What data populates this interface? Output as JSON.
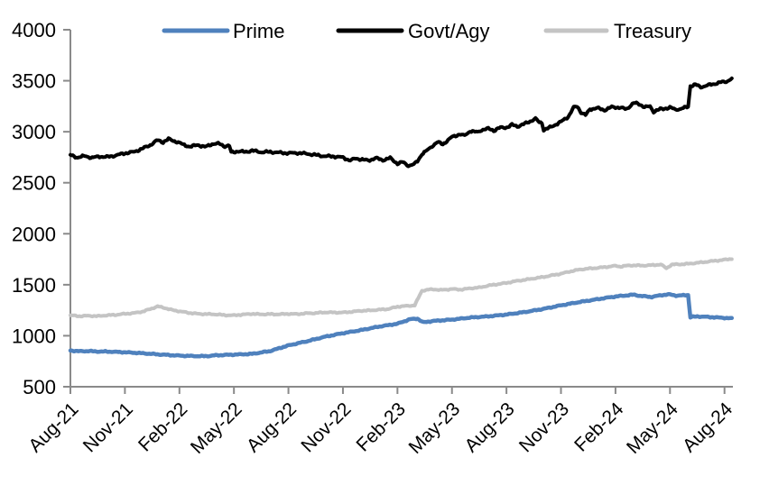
{
  "chart_data": {
    "type": "line",
    "title": "",
    "legend_position": "top",
    "grid": false,
    "background_color": "#ffffff",
    "style": {
      "axis_color": "#8a8a8a",
      "text_color": "#000000"
    },
    "x_axis": {
      "unit": "months_since_Aug-2021",
      "tick_labels": [
        "Aug-21",
        "Nov-21",
        "Feb-22",
        "May-22",
        "Aug-22",
        "Nov-22",
        "Feb-23",
        "May-23",
        "Aug-23",
        "Nov-23",
        "Feb-24",
        "May-24",
        "Aug-24"
      ],
      "tick_positions_months": [
        0,
        3,
        6,
        9,
        12,
        15,
        18,
        21,
        24,
        27,
        30,
        33,
        36
      ],
      "label_rotation_deg": 45,
      "data_end_month": 36.4
    },
    "y_axis": {
      "min": 500,
      "max": 4000,
      "tick_interval": 500
    },
    "series": [
      {
        "name": "Prime",
        "color": "#4f81bd",
        "stroke_width": 4.5,
        "noise_amp": 6,
        "points": [
          [
            0,
            855
          ],
          [
            0.5,
            848
          ],
          [
            1,
            850
          ],
          [
            1.5,
            845
          ],
          [
            2,
            845
          ],
          [
            3,
            838
          ],
          [
            4,
            828
          ],
          [
            5,
            815
          ],
          [
            6,
            805
          ],
          [
            7,
            800
          ],
          [
            7.5,
            800
          ],
          [
            8,
            808
          ],
          [
            9,
            815
          ],
          [
            10,
            822
          ],
          [
            11,
            850
          ],
          [
            11.5,
            878
          ],
          [
            12,
            905
          ],
          [
            13,
            945
          ],
          [
            14,
            990
          ],
          [
            15,
            1025
          ],
          [
            16,
            1055
          ],
          [
            17,
            1090
          ],
          [
            18,
            1118
          ],
          [
            18.7,
            1162
          ],
          [
            19.1,
            1168
          ],
          [
            19.4,
            1132
          ],
          [
            20,
            1145
          ],
          [
            21,
            1158
          ],
          [
            22,
            1178
          ],
          [
            23,
            1190
          ],
          [
            24,
            1208
          ],
          [
            25,
            1232
          ],
          [
            26,
            1262
          ],
          [
            27,
            1298
          ],
          [
            28,
            1330
          ],
          [
            29,
            1358
          ],
          [
            30,
            1385
          ],
          [
            31,
            1402
          ],
          [
            31.4,
            1390
          ],
          [
            32,
            1380
          ],
          [
            32.5,
            1398
          ],
          [
            33,
            1405
          ],
          [
            33.4,
            1392
          ],
          [
            33.8,
            1398
          ],
          [
            34,
            1400
          ],
          [
            34.12,
            1182
          ],
          [
            34.5,
            1190
          ],
          [
            35,
            1185
          ],
          [
            35.5,
            1180
          ],
          [
            36,
            1175
          ],
          [
            36.4,
            1170
          ]
        ]
      },
      {
        "name": "Govt/Agy",
        "color": "#000000",
        "stroke_width": 4,
        "noise_amp": 13,
        "points": [
          [
            0,
            2770
          ],
          [
            0.4,
            2748
          ],
          [
            0.8,
            2762
          ],
          [
            1.2,
            2745
          ],
          [
            1.6,
            2758
          ],
          [
            2,
            2752
          ],
          [
            2.5,
            2768
          ],
          [
            3,
            2790
          ],
          [
            3.5,
            2802
          ],
          [
            4,
            2838
          ],
          [
            4.4,
            2870
          ],
          [
            4.8,
            2918
          ],
          [
            5.1,
            2898
          ],
          [
            5.4,
            2928
          ],
          [
            5.8,
            2905
          ],
          [
            6.2,
            2875
          ],
          [
            6.6,
            2852
          ],
          [
            7,
            2872
          ],
          [
            7.4,
            2850
          ],
          [
            7.8,
            2880
          ],
          [
            8.2,
            2882
          ],
          [
            8.5,
            2858
          ],
          [
            8.75,
            2862
          ],
          [
            8.85,
            2798
          ],
          [
            9.2,
            2808
          ],
          [
            9.6,
            2802
          ],
          [
            10,
            2815
          ],
          [
            10.5,
            2800
          ],
          [
            11,
            2802
          ],
          [
            11.5,
            2795
          ],
          [
            12,
            2790
          ],
          [
            12.5,
            2792
          ],
          [
            13,
            2785
          ],
          [
            13.5,
            2772
          ],
          [
            14,
            2760
          ],
          [
            14.5,
            2758
          ],
          [
            15,
            2748
          ],
          [
            15.4,
            2718
          ],
          [
            15.7,
            2738
          ],
          [
            16,
            2730
          ],
          [
            16.4,
            2718
          ],
          [
            16.8,
            2742
          ],
          [
            17.2,
            2722
          ],
          [
            17.6,
            2742
          ],
          [
            18,
            2688
          ],
          [
            18.3,
            2702
          ],
          [
            18.6,
            2668
          ],
          [
            18.9,
            2678
          ],
          [
            19.1,
            2712
          ],
          [
            19.35,
            2782
          ],
          [
            19.6,
            2812
          ],
          [
            19.9,
            2858
          ],
          [
            20.2,
            2898
          ],
          [
            20.5,
            2878
          ],
          [
            21,
            2948
          ],
          [
            21.4,
            2975
          ],
          [
            21.7,
            2962
          ],
          [
            22,
            3008
          ],
          [
            22.4,
            2995
          ],
          [
            22.7,
            3022
          ],
          [
            23,
            3030
          ],
          [
            23.3,
            3012
          ],
          [
            23.6,
            3038
          ],
          [
            24,
            3042
          ],
          [
            24.3,
            3068
          ],
          [
            24.6,
            3052
          ],
          [
            25,
            3078
          ],
          [
            25.3,
            3102
          ],
          [
            25.6,
            3128
          ],
          [
            25.8,
            3092
          ],
          [
            25.95,
            3088
          ],
          [
            26.05,
            3018
          ],
          [
            26.4,
            3042
          ],
          [
            27,
            3098
          ],
          [
            27.4,
            3148
          ],
          [
            27.7,
            3238
          ],
          [
            27.9,
            3248
          ],
          [
            28.1,
            3192
          ],
          [
            28.35,
            3162
          ],
          [
            28.6,
            3222
          ],
          [
            29,
            3232
          ],
          [
            29.4,
            3212
          ],
          [
            29.8,
            3242
          ],
          [
            30.2,
            3238
          ],
          [
            30.6,
            3222
          ],
          [
            31,
            3282
          ],
          [
            31.3,
            3272
          ],
          [
            31.6,
            3242
          ],
          [
            31.9,
            3248
          ],
          [
            32.1,
            3198
          ],
          [
            32.4,
            3218
          ],
          [
            32.7,
            3228
          ],
          [
            33,
            3238
          ],
          [
            33.3,
            3218
          ],
          [
            33.6,
            3225
          ],
          [
            34,
            3245
          ],
          [
            34.12,
            3448
          ],
          [
            34.4,
            3462
          ],
          [
            34.7,
            3438
          ],
          [
            35,
            3452
          ],
          [
            35.4,
            3468
          ],
          [
            35.8,
            3485
          ],
          [
            36.1,
            3492
          ],
          [
            36.4,
            3520
          ]
        ]
      },
      {
        "name": "Treasury",
        "color": "#c4c4c4",
        "stroke_width": 4,
        "noise_amp": 7,
        "points": [
          [
            0,
            1200
          ],
          [
            0.5,
            1192
          ],
          [
            1,
            1196
          ],
          [
            1.5,
            1192
          ],
          [
            2,
            1200
          ],
          [
            2.5,
            1205
          ],
          [
            3,
            1215
          ],
          [
            3.5,
            1222
          ],
          [
            4,
            1238
          ],
          [
            4.4,
            1262
          ],
          [
            4.8,
            1288
          ],
          [
            5.2,
            1272
          ],
          [
            5.6,
            1252
          ],
          [
            6,
            1240
          ],
          [
            6.5,
            1225
          ],
          [
            7,
            1215
          ],
          [
            7.5,
            1212
          ],
          [
            8,
            1210
          ],
          [
            8.5,
            1202
          ],
          [
            9,
            1200
          ],
          [
            9.5,
            1208
          ],
          [
            10,
            1215
          ],
          [
            10.5,
            1210
          ],
          [
            11,
            1212
          ],
          [
            11.5,
            1210
          ],
          [
            12,
            1215
          ],
          [
            12.5,
            1212
          ],
          [
            13,
            1220
          ],
          [
            13.5,
            1222
          ],
          [
            14,
            1230
          ],
          [
            14.5,
            1228
          ],
          [
            15,
            1228
          ],
          [
            15.5,
            1235
          ],
          [
            16,
            1245
          ],
          [
            16.5,
            1248
          ],
          [
            17,
            1255
          ],
          [
            17.5,
            1262
          ],
          [
            18,
            1285
          ],
          [
            18.5,
            1292
          ],
          [
            18.95,
            1298
          ],
          [
            19.35,
            1442
          ],
          [
            19.7,
            1452
          ],
          [
            20,
            1455
          ],
          [
            20.4,
            1448
          ],
          [
            21,
            1458
          ],
          [
            21.5,
            1452
          ],
          [
            22,
            1465
          ],
          [
            22.5,
            1472
          ],
          [
            23,
            1492
          ],
          [
            23.5,
            1505
          ],
          [
            24,
            1518
          ],
          [
            24.5,
            1535
          ],
          [
            25,
            1548
          ],
          [
            25.5,
            1562
          ],
          [
            26,
            1575
          ],
          [
            26.5,
            1592
          ],
          [
            27,
            1608
          ],
          [
            27.5,
            1630
          ],
          [
            28,
            1648
          ],
          [
            28.5,
            1658
          ],
          [
            29,
            1665
          ],
          [
            29.5,
            1675
          ],
          [
            30,
            1685
          ],
          [
            30.3,
            1678
          ],
          [
            30.7,
            1688
          ],
          [
            31,
            1690
          ],
          [
            31.5,
            1688
          ],
          [
            32,
            1692
          ],
          [
            32.5,
            1698
          ],
          [
            32.8,
            1662
          ],
          [
            33.1,
            1698
          ],
          [
            33.5,
            1700
          ],
          [
            34,
            1705
          ],
          [
            34.5,
            1715
          ],
          [
            35,
            1725
          ],
          [
            35.5,
            1735
          ],
          [
            36,
            1745
          ],
          [
            36.4,
            1755
          ]
        ]
      }
    ]
  }
}
